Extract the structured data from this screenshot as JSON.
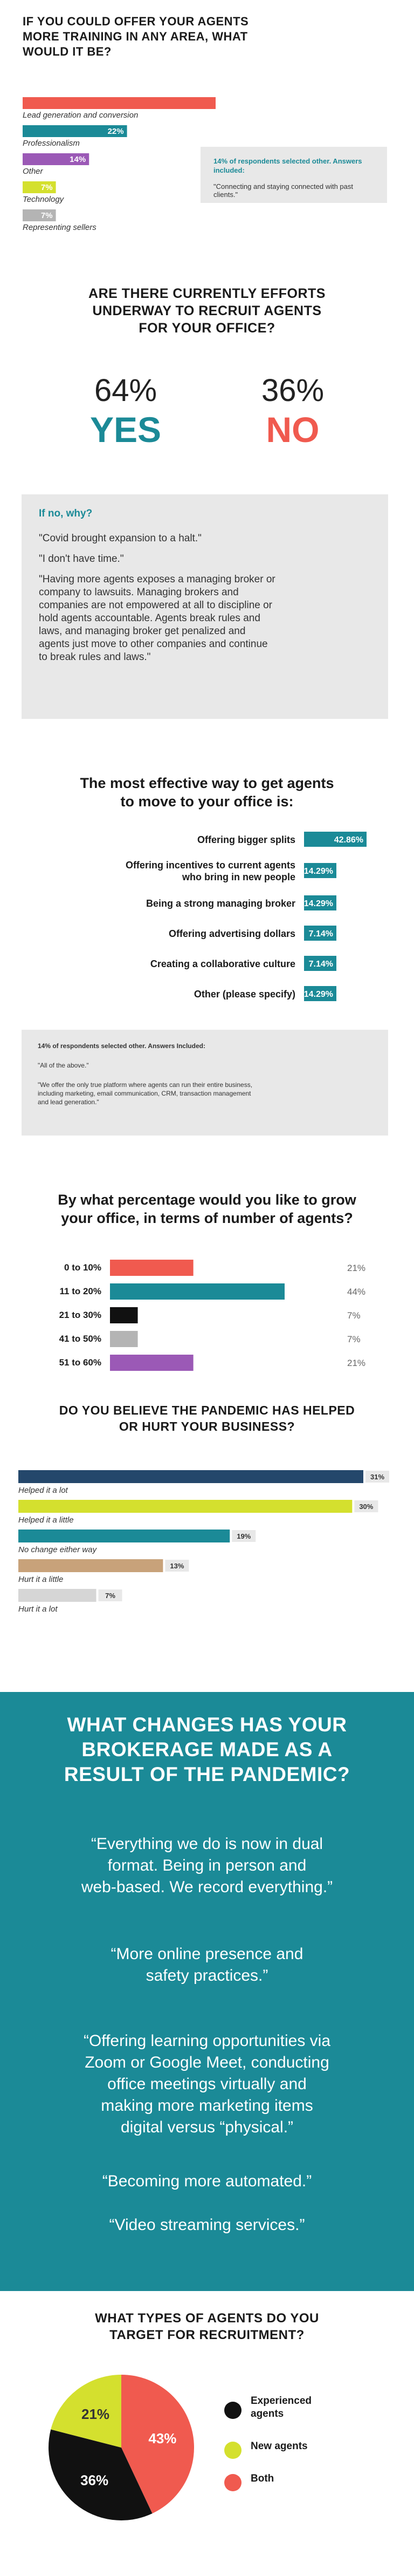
{
  "colors": {
    "coral": "#f05a4f",
    "teal": "#1b8a97",
    "purple": "#9b59b6",
    "yellow": "#d4e02e",
    "grey": "#b4b4b4",
    "navy": "#24476b",
    "tan": "#c8a27a",
    "lightgrey": "#d6d6d6",
    "black": "#111111"
  },
  "s1": {
    "title_line1": "IF YOU COULD OFFER YOUR AGENTS",
    "title_line2": "MORE TRAINING IN ANY AREA, WHAT",
    "title_line3": "WOULD IT BE?",
    "note_title": "14% of respondents selected other. Answers included:",
    "note_quote": "\"Connecting and staying connected with past clients.\""
  },
  "s2": {
    "title_line1": "ARE THERE CURRENTLY EFFORTS",
    "title_line2": "UNDERWAY TO RECRUIT AGENTS",
    "title_line3": "FOR YOUR OFFICE?",
    "yes_pct": "64%",
    "yes_label": "YES",
    "no_pct": "36%",
    "no_label": "NO",
    "why_title": "If no, why?",
    "why_1": "\"Covid brought expansion to a halt.\"",
    "why_2": "\"I don't have time.\"",
    "why_3_l1": "\"Having more agents exposes a managing broker or",
    "why_3_l2": "company to lawsuits. Managing brokers and",
    "why_3_l3": "companies are not empowered at all to discipline or",
    "why_3_l4": "hold agents accountable. Agents break rules and",
    "why_3_l5": "laws, and managing broker get penalized and",
    "why_3_l6": "agents just move to other companies and continue",
    "why_3_l7": "to break rules and laws.\""
  },
  "s3": {
    "title_line1": "The most effective way to get agents",
    "title_line2": "to move to your office is:",
    "note_title": "14% of respondents selected other. Answers Included:",
    "note_q1": "\"All of the above.\"",
    "note_q2_l1": "\"We offer the only true platform where agents can run their entire business,",
    "note_q2_l2": "including marketing, email communication, CRM, transaction management",
    "note_q2_l3": "and lead generation.\""
  },
  "s4": {
    "title_line1": "By what percentage would you like to grow",
    "title_line2": "your office, in terms of number of agents?"
  },
  "s5": {
    "title_line1": "DO YOU BELIEVE THE PANDEMIC HAS HELPED",
    "title_line2": "OR HURT YOUR BUSINESS?"
  },
  "s6": {
    "title_line1": "WHAT CHANGES HAS YOUR",
    "title_line2": "BROKERAGE MADE AS A",
    "title_line3": "RESULT OF THE PANDEMIC?",
    "q1_l1": "“Everything we do is now in dual",
    "q1_l2": "format. Being in person and",
    "q1_l3": "web-based. We record everything.”",
    "q2_l1": "“More online presence and",
    "q2_l2": "safety practices.”",
    "q3_l1": "“Offering learning opportunities via",
    "q3_l2": "Zoom or Google Meet, conducting",
    "q3_l3": "office meetings virtually and",
    "q3_l4": "making more marketing items",
    "q3_l5": "digital versus “physical.”",
    "q4": "“Becoming more automated.”",
    "q5": "“Video streaming services.”"
  },
  "s7": {
    "title_line1": "WHAT TYPES OF AGENTS DO YOU",
    "title_line2": "TARGET FOR RECRUITMENT?"
  },
  "chart_data": [
    {
      "type": "bar",
      "orientation": "horizontal",
      "categories": [
        "Lead generation and conversion",
        "Professionalism",
        "Other",
        "Technology",
        "Representing sellers"
      ],
      "values": [
        50,
        22,
        14,
        7,
        7
      ],
      "labels": [
        "50%",
        "22%",
        "14%",
        "7%",
        "7%"
      ]
    },
    {
      "type": "bar",
      "orientation": "horizontal",
      "categories": [
        "Offering bigger splits",
        "Offering incentives to current agents who bring in new people",
        "Being a strong managing broker",
        "Offering advertising dollars",
        "Creating a collaborative culture",
        "Other (please specify)"
      ],
      "category_lines": [
        [
          "Offering bigger splits"
        ],
        [
          "Offering incentives to current agents",
          "who bring in new people"
        ],
        [
          "Being a strong managing broker"
        ],
        [
          "Offering advertising dollars"
        ],
        [
          "Creating a collaborative culture"
        ],
        [
          "Other (please specify)"
        ]
      ],
      "values": [
        42.86,
        14.29,
        14.29,
        7.14,
        7.14,
        14.29
      ],
      "labels": [
        "42.86%",
        "14.29%",
        "14.29%",
        "7.14%",
        "7.14%",
        "14.29%"
      ]
    },
    {
      "type": "bar",
      "orientation": "horizontal",
      "categories": [
        "0 to 10%",
        "11 to 20%",
        "21 to 30%",
        "41 to 50%",
        "51 to 60%"
      ],
      "values": [
        21,
        44,
        7,
        7,
        21
      ],
      "labels": [
        "21%",
        "44%",
        "7%",
        "7%",
        "21%"
      ]
    },
    {
      "type": "bar",
      "orientation": "horizontal",
      "categories": [
        "Helped it a lot",
        "Helped it a little",
        "No change either way",
        "Hurt it a little",
        "Hurt it a lot"
      ],
      "values": [
        31,
        30,
        19,
        13,
        7
      ],
      "labels": [
        "31%",
        "30%",
        "19%",
        "13%",
        "7%"
      ]
    },
    {
      "type": "pie",
      "categories": [
        "Experienced agents",
        "New agents",
        "Both"
      ],
      "legend_lines": [
        [
          "Experienced",
          "agents"
        ],
        [
          "New agents"
        ],
        [
          "Both"
        ]
      ],
      "values": [
        36,
        21,
        43
      ],
      "labels": [
        "36%",
        "21%",
        "43%"
      ]
    }
  ]
}
